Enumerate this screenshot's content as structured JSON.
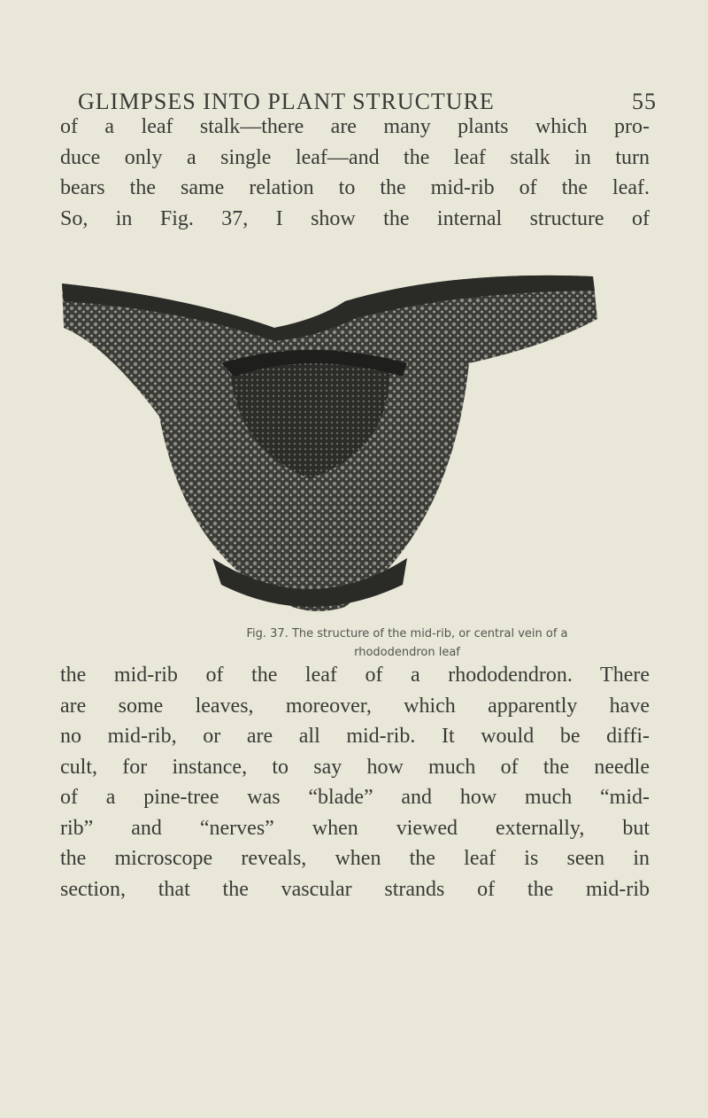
{
  "header": {
    "title": "GLIMPSES INTO PLANT STRUCTURE",
    "page_number": "55"
  },
  "paragraphs": [
    {
      "lines": [
        "of a leaf stalk—there are many plants which pro-",
        "duce only a single leaf—and the leaf stalk in turn",
        "bears the same relation to the mid-rib of the leaf.",
        "So, in Fig. 37, I show the internal structure of"
      ]
    },
    {
      "lines": [
        "the mid-rib of the leaf of a rhododendron. There",
        "are some leaves, moreover, which apparently have",
        "no mid-rib, or are all mid-rib. It would be diffi-",
        "cult, for instance, to say how much of the needle",
        "of a pine-tree was “blade” and how much “mid-",
        "rib” and “nerves” when viewed externally, but",
        "the microscope reveals, when the leaf is seen in",
        "section, that the vascular strands of the mid-rib"
      ]
    }
  ],
  "figure": {
    "label": "Fig. 37.",
    "caption_lines": [
      "The structure of the mid-rib, or central vein of a",
      "rhododendron leaf"
    ]
  }
}
